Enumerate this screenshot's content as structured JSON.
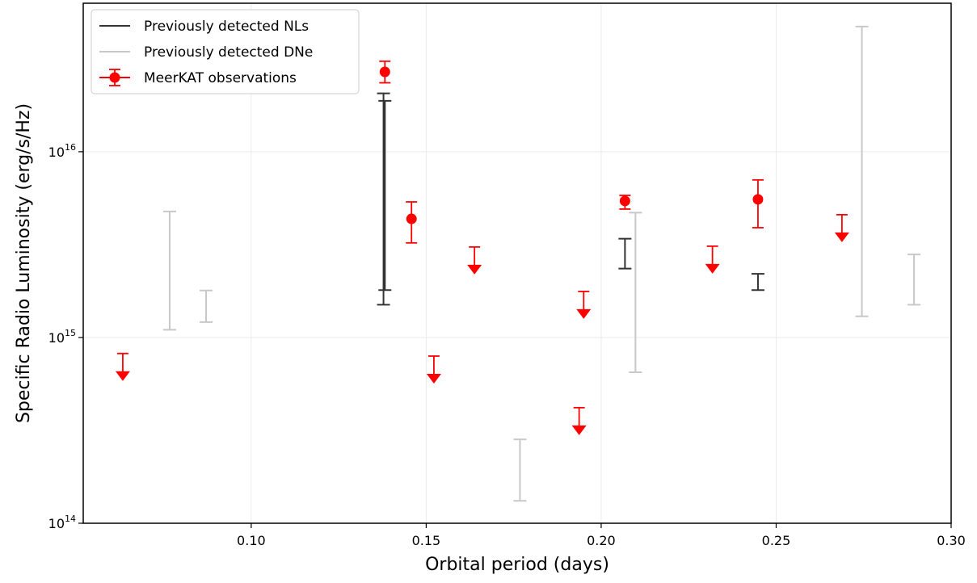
{
  "chart_data": {
    "type": "errorbar",
    "xlabel": "Orbital period (days)",
    "ylabel": "Specific Radio Luminosity (erg/s/Hz)",
    "xlim": [
      0.052,
      0.3
    ],
    "ylim": [
      100000000000000.0,
      6.3e+16
    ],
    "ylog": true,
    "grid": true,
    "legend": "upper left",
    "xticks": [
      {
        "value": 0.1,
        "label": "0.10"
      },
      {
        "value": 0.15,
        "label": "0.15"
      },
      {
        "value": 0.2,
        "label": "0.20"
      },
      {
        "value": 0.25,
        "label": "0.25"
      },
      {
        "value": 0.3,
        "label": "0.30"
      }
    ],
    "yticks": [
      {
        "value": 100000000000000.0,
        "label": "10^14"
      },
      {
        "value": 1000000000000000.0,
        "label": "10^15"
      },
      {
        "value": 1e+16,
        "label": "10^16"
      }
    ],
    "series": [
      {
        "name": "Previously detected NLs",
        "color": "#333333",
        "kind": "range",
        "x": [
          0.1378,
          0.1382,
          0.2068,
          0.2448
        ],
        "low": [
          1500000000000000.0,
          1800000000000000.0,
          2350000000000000.0,
          1800000000000000.0
        ],
        "high": [
          2.06e+16,
          1.88e+16,
          3400000000000000.0,
          2200000000000000.0
        ]
      },
      {
        "name": "Previously detected DNe",
        "color": "#c8c8c8",
        "kind": "range",
        "x": [
          0.0767,
          0.0871,
          0.1768,
          0.2098,
          0.2745,
          0.2894
        ],
        "low": [
          1100000000000000.0,
          1210000000000000.0,
          132000000000000.0,
          650000000000000.0,
          1300000000000000.0,
          1500000000000000.0
        ],
        "high": [
          4770000000000000.0,
          1790000000000000.0,
          283000000000000.0,
          4700000000000000.0,
          4.72e+16,
          2800000000000000.0
        ]
      },
      {
        "name": "MeerKAT observations",
        "color": "#ff0000",
        "kind": "points",
        "x": [
          0.1382,
          0.1458,
          0.2068,
          0.2448
        ],
        "values": [
          2.69e+16,
          4350000000000000.0,
          5430000000000000.0,
          5540000000000000.0
        ],
        "err_low": [
          2.35e+16,
          3230000000000000.0,
          4910000000000000.0,
          3900000000000000.0
        ],
        "err_high": [
          3.07e+16,
          5370000000000000.0,
          5820000000000000.0,
          7050000000000000.0
        ],
        "upper_limits": {
          "x": [
            0.0633,
            0.1522,
            0.1638,
            0.1937,
            0.195,
            0.2318,
            0.2688
          ],
          "values": [
            820000000000000.0,
            794000000000000.0,
            3070000000000000.0,
            419000000000000.0,
            1770000000000000.0,
            3100000000000000.0,
            4580000000000000.0
          ]
        }
      }
    ]
  }
}
